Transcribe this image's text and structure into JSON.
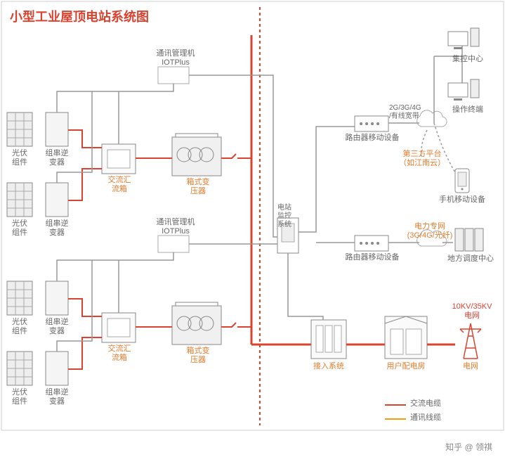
{
  "title": {
    "text": "小型工业屋顶电站系统图",
    "fontsize": 18,
    "color": "#d9432f"
  },
  "colors": {
    "ac_cable": "#d9432f",
    "comm_cable": "#999999",
    "accent": "#f39c12",
    "text_orange": "#e67b2c",
    "text_gray": "#666666",
    "border": "#999999",
    "dotted_vert": "#d9432f",
    "tower_red": "#d9432f"
  },
  "labels": {
    "pv": "光伏\n组件",
    "inverter": "组串逆\n变器",
    "combiner": "交流汇\n流箱",
    "transformer": "箱式变\n压器",
    "iot": "通讯管理机\nIOTPlus",
    "monitor": "电站\n监控\n系统",
    "router": "路由器移动设备",
    "network": "2G/3G/4G\n/有线宽带",
    "thirdparty": "第三方平台\n（如江南云）",
    "mobile": "手机移动设备",
    "control_center": "集控中心",
    "terminal": "操作终端",
    "power_net": "电力专网\n(3G/4G/光纤)",
    "dispatch": "地方调度中心",
    "access": "接入系统",
    "distribution": "用户配电房",
    "grid": "电网",
    "grid_voltage": "10KV/35KV\n电网"
  },
  "legend": {
    "ac": "交流电缆",
    "comm": "通讯线缆"
  },
  "watermark": "知乎 @ 领祺",
  "fonts": {
    "label": 12,
    "small": 11
  }
}
